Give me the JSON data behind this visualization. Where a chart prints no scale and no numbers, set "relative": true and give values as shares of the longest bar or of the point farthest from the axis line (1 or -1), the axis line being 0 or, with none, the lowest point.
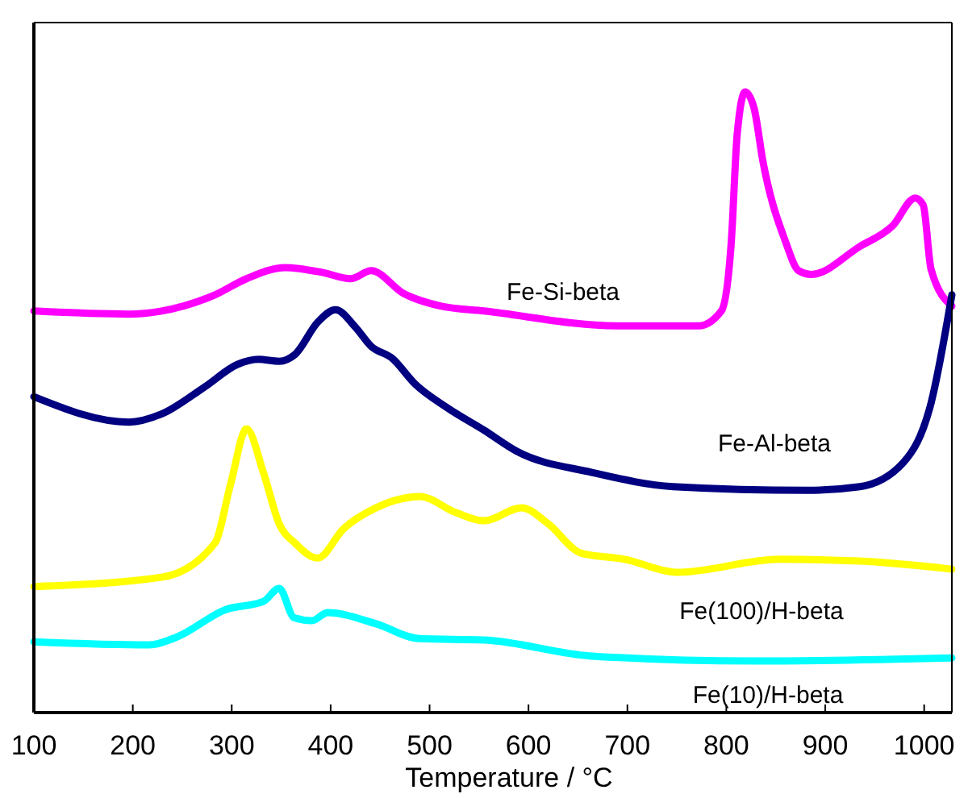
{
  "chart_data": {
    "type": "line",
    "relative": true,
    "xlabel": "Temperature /  °C",
    "xlim": [
      100,
      1028
    ],
    "xticks": [
      100,
      200,
      300,
      400,
      500,
      600,
      700,
      800,
      900,
      1000
    ],
    "grid": false,
    "marker": "none",
    "line_style": "solid",
    "series": [
      {
        "name": "Fe-Si-beta",
        "color": "#ff00ff",
        "x": [
          100,
          196,
          229,
          283,
          315,
          354,
          392,
          420,
          441,
          474,
          511,
          555,
          691,
          772,
          795,
          805,
          811,
          819,
          828,
          837,
          860,
          873,
          886,
          935,
          968,
          991,
          999,
          1007,
          1028
        ],
        "values": [
          0.647,
          0.642,
          0.647,
          0.673,
          0.699,
          0.717,
          0.709,
          0.699,
          0.712,
          0.675,
          0.655,
          0.647,
          0.623,
          0.623,
          0.647,
          0.758,
          0.932,
          1.0,
          0.974,
          0.888,
          0.758,
          0.712,
          0.706,
          0.751,
          0.784,
          0.829,
          0.818,
          0.714,
          0.655
        ]
      },
      {
        "name": "Fe-Al-beta",
        "color": "#000080",
        "x": [
          100,
          196,
          229,
          273,
          306,
          327,
          348,
          364,
          387,
          405,
          425,
          441,
          462,
          485,
          518,
          555,
          588,
          664,
          746,
          881,
          935,
          979,
          1007,
          1028
        ],
        "values": [
          0.509,
          0.468,
          0.481,
          0.525,
          0.561,
          0.569,
          0.566,
          0.577,
          0.629,
          0.649,
          0.621,
          0.59,
          0.571,
          0.53,
          0.491,
          0.455,
          0.421,
          0.387,
          0.364,
          0.358,
          0.364,
          0.403,
          0.499,
          0.673
        ]
      },
      {
        "name": "Fe(100)/H-beta",
        "color": "#ffff00",
        "x": [
          100,
          229,
          283,
          299,
          315,
          332,
          348,
          364,
          387,
          413,
          446,
          490,
          527,
          555,
          593,
          620,
          653,
          697,
          751,
          854,
          935,
          1028
        ],
        "values": [
          0.203,
          0.218,
          0.273,
          0.369,
          0.457,
          0.387,
          0.304,
          0.273,
          0.249,
          0.296,
          0.33,
          0.348,
          0.322,
          0.309,
          0.33,
          0.304,
          0.257,
          0.247,
          0.226,
          0.247,
          0.244,
          0.231
        ]
      },
      {
        "name": "Fe(10)/H-beta",
        "color": "#00ffff",
        "x": [
          100,
          217,
          245,
          294,
          332,
          348,
          363,
          381,
          397,
          446,
          490,
          555,
          664,
          828,
          1028
        ],
        "values": [
          0.114,
          0.109,
          0.122,
          0.166,
          0.179,
          0.2,
          0.153,
          0.148,
          0.161,
          0.143,
          0.119,
          0.117,
          0.091,
          0.083,
          0.088
        ]
      }
    ]
  }
}
